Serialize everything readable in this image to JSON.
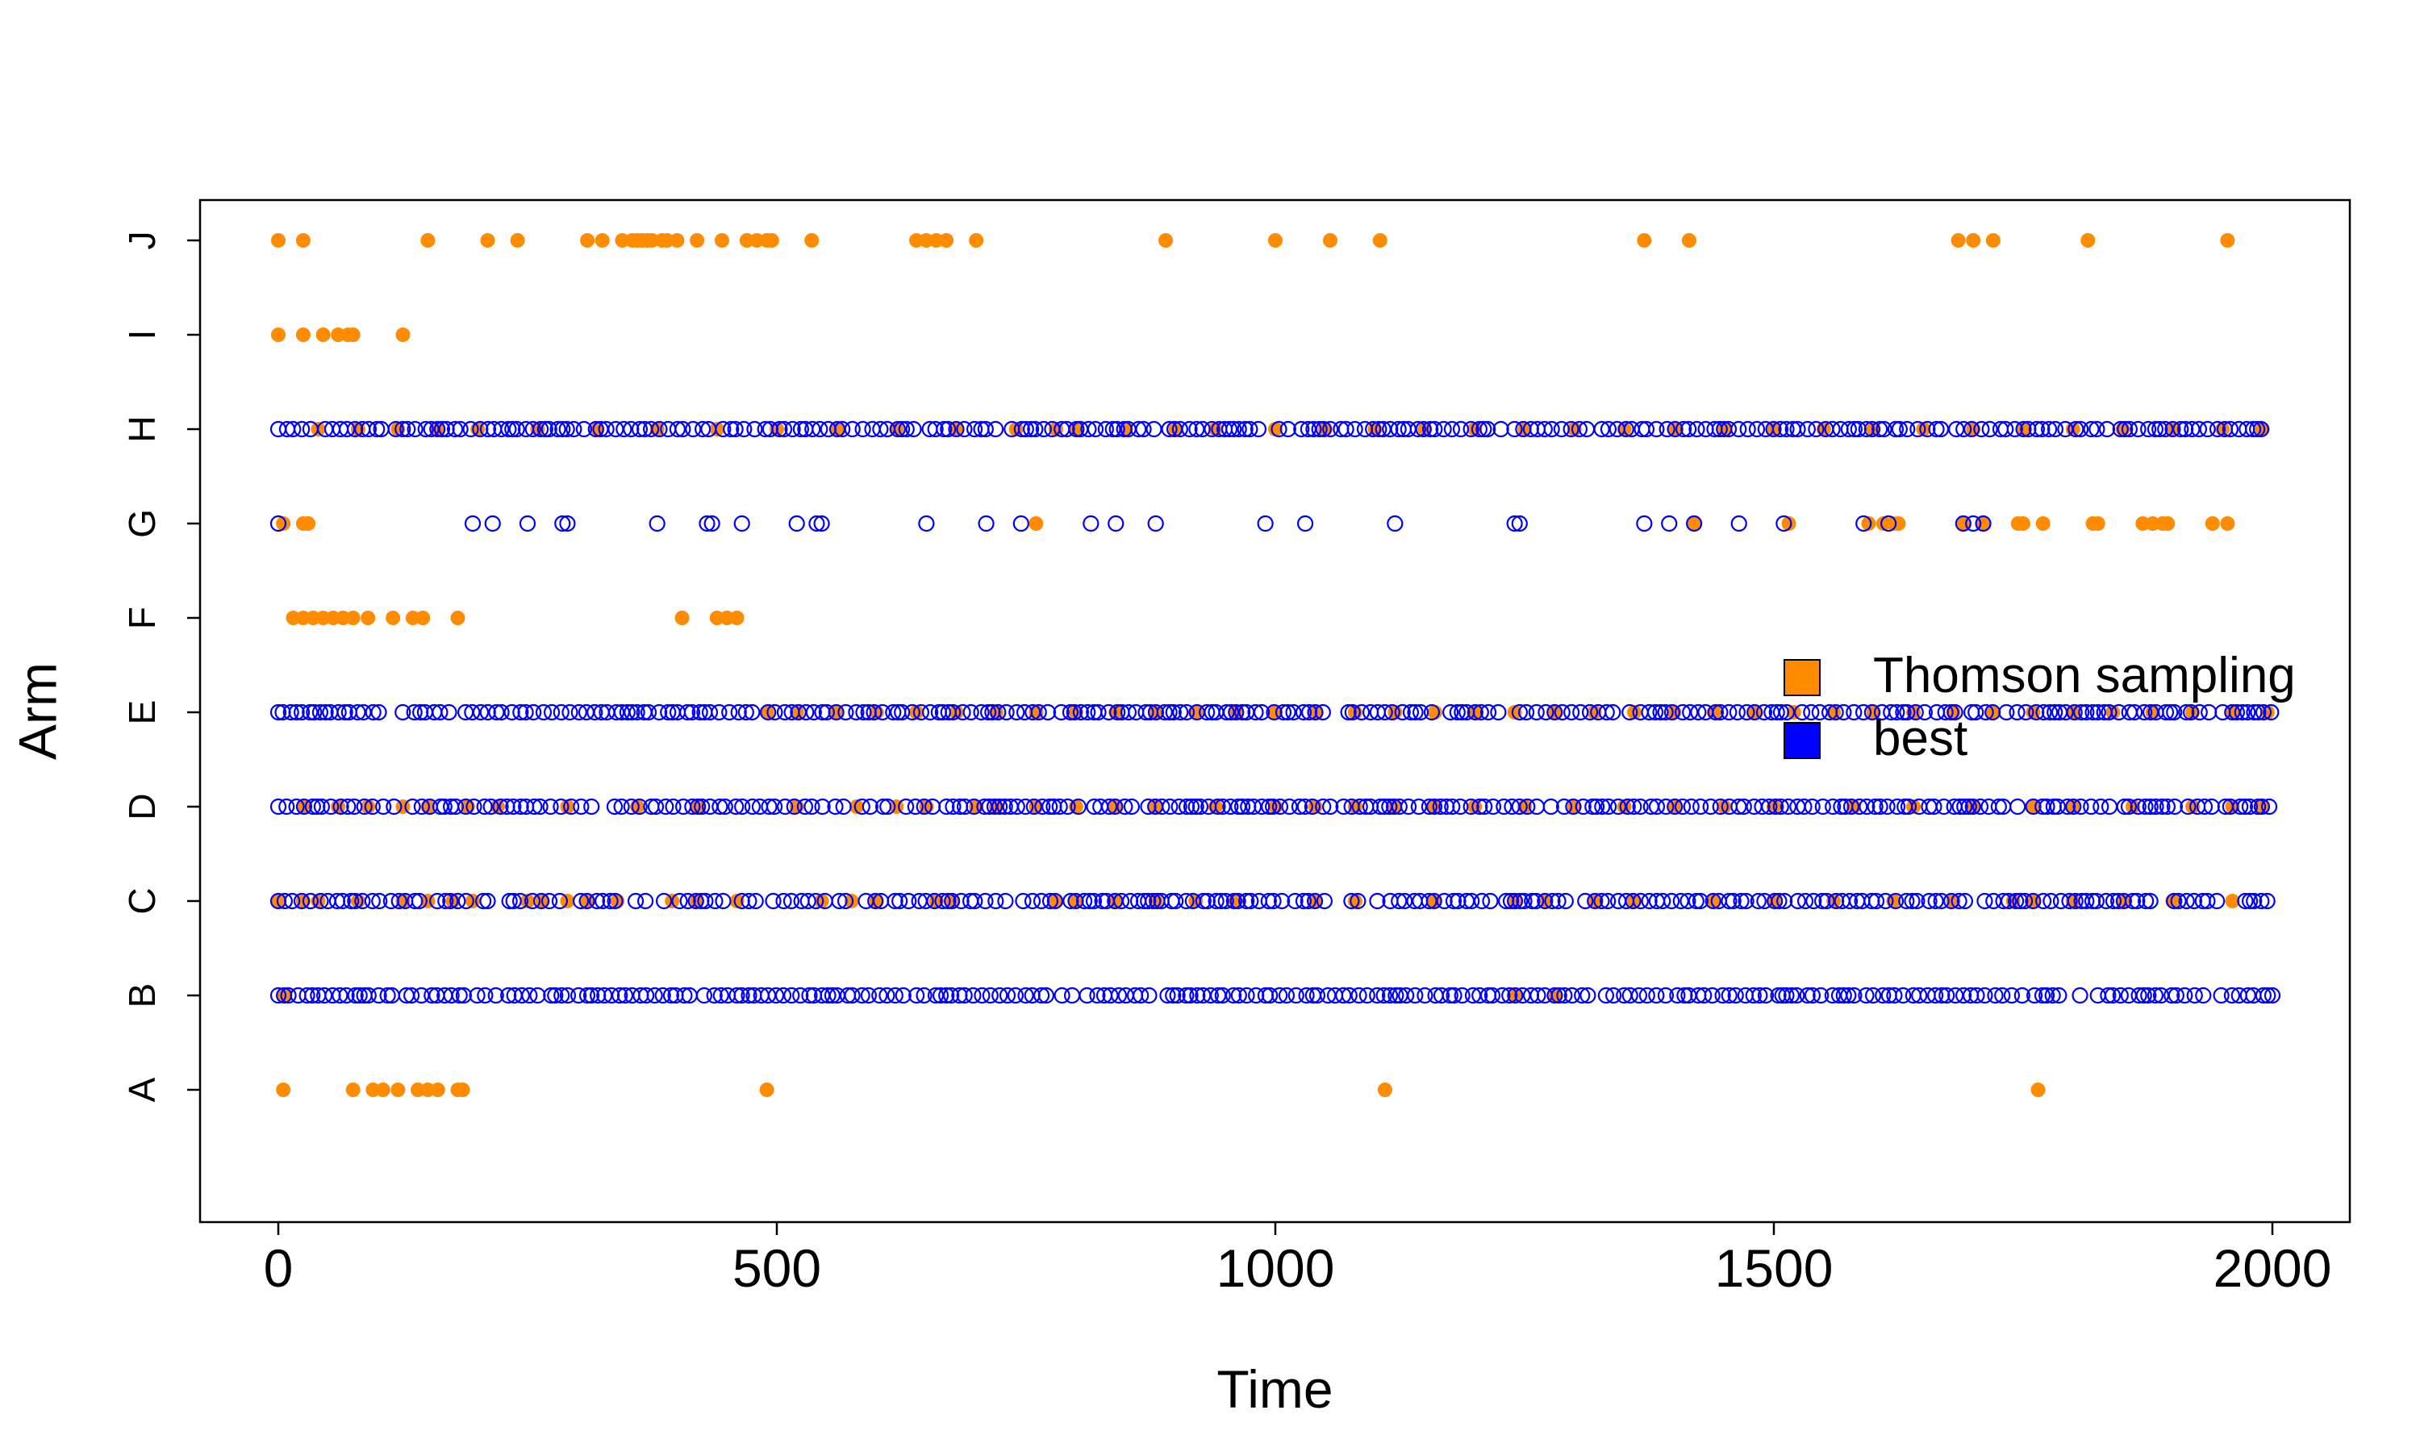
{
  "chart_data": {
    "type": "scatter",
    "title": "",
    "xlabel": "Time",
    "ylabel": "Arm",
    "xlim": [
      -80,
      2080
    ],
    "x_ticks": [
      0,
      500,
      1000,
      1500,
      2000
    ],
    "x_tick_labels": [
      "0",
      "500",
      "1000",
      "1500",
      "2000"
    ],
    "categories": [
      "A",
      "B",
      "C",
      "D",
      "E",
      "F",
      "G",
      "H",
      "I",
      "J"
    ],
    "legend_position": "right, slightly above center",
    "grid": false,
    "series": [
      {
        "name": "Thomson sampling",
        "marker": "filled-circle",
        "color": "#FF8C00",
        "points": {
          "A": [
            5,
            75,
            95,
            105,
            120,
            140,
            150,
            160,
            180,
            185,
            490,
            1110,
            1765
          ],
          "B": [
            5,
            1240,
            1280
          ],
          "C": [
            0,
            25,
            40,
            80,
            125,
            150,
            175,
            195,
            250,
            265,
            290,
            310,
            340,
            395,
            420,
            460,
            545,
            575,
            600,
            660,
            675,
            780,
            800,
            840,
            880,
            920,
            960,
            1040,
            1080,
            1160,
            1240,
            1270,
            1320,
            1360,
            1440,
            1500,
            1560,
            1620,
            1680,
            1740,
            1760,
            1800,
            1850,
            1900,
            1960
          ],
          "D": [
            25,
            60,
            90,
            125,
            150,
            190,
            220,
            290,
            360,
            420,
            520,
            580,
            620,
            650,
            700,
            720,
            760,
            800,
            840,
            880,
            940,
            1000,
            1040,
            1080,
            1120,
            1160,
            1200,
            1250,
            1300,
            1350,
            1400,
            1450,
            1500,
            1580,
            1640,
            1700,
            1760,
            1800,
            1860,
            1920,
            1960,
            1990
          ],
          "E": [
            490,
            520,
            560,
            600,
            640,
            680,
            720,
            760,
            800,
            840,
            880,
            920,
            960,
            1000,
            1040,
            1080,
            1120,
            1160,
            1200,
            1240,
            1280,
            1320,
            1360,
            1400,
            1440,
            1480,
            1520,
            1560,
            1600,
            1640,
            1680,
            1720,
            1760,
            1800,
            1840,
            1880,
            1920,
            1960,
            1995
          ],
          "F": [
            15,
            25,
            35,
            45,
            55,
            65,
            75,
            90,
            115,
            135,
            145,
            180,
            405,
            440,
            450,
            460
          ],
          "G": [
            5,
            25,
            30,
            760,
            1420,
            1515,
            1595,
            1610,
            1620,
            1625,
            1690,
            1710,
            1745,
            1750,
            1770,
            1820,
            1825,
            1870,
            1880,
            1890,
            1895,
            1940,
            1955
          ],
          "H": [
            40,
            80,
            120,
            160,
            200,
            260,
            320,
            380,
            440,
            500,
            560,
            620,
            680,
            740,
            780,
            800,
            850,
            900,
            940,
            1000,
            1050,
            1100,
            1150,
            1200,
            1250,
            1300,
            1350,
            1400,
            1450,
            1500,
            1550,
            1600,
            1650,
            1700,
            1750,
            1800,
            1850,
            1900,
            1950,
            1990
          ],
          "I": [
            0,
            25,
            45,
            60,
            70,
            75,
            125
          ],
          "J": [
            0,
            25,
            150,
            210,
            240,
            310,
            325,
            345,
            355,
            360,
            365,
            370,
            375,
            385,
            390,
            400,
            420,
            445,
            470,
            480,
            490,
            495,
            535,
            640,
            650,
            660,
            670,
            700,
            890,
            1000,
            1055,
            1105,
            1370,
            1415,
            1685,
            1700,
            1720,
            1815,
            1955
          ]
        }
      },
      {
        "name": "best",
        "marker": "open-circle",
        "color": "#0000FF",
        "points": {
          "A": [],
          "B": "dense band from about 0 to 2000 with small gaps",
          "C": "dense band from about 0 to 2000 with small gaps",
          "D": "dense band from about 0 to 2000",
          "E": "dense band from about 0 to 2000 with small gaps",
          "F": [],
          "G": [
            0,
            195,
            215,
            250,
            285,
            290,
            380,
            430,
            435,
            465,
            520,
            540,
            545,
            650,
            710,
            745,
            815,
            840,
            880,
            990,
            1030,
            1120,
            1240,
            1245,
            1370,
            1395,
            1420,
            1465,
            1510,
            1590,
            1615,
            1690,
            1700,
            1710
          ],
          "H": "dense band from about 0 to 1990 with small gaps",
          "I": [],
          "J": []
        }
      }
    ]
  }
}
